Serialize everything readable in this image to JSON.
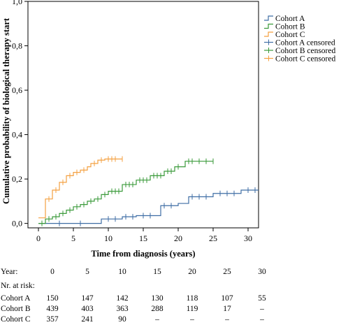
{
  "chart_data": {
    "type": "line",
    "title": "",
    "xlabel": "Time from diagnosis (years)",
    "ylabel": "Cumulative probability of biological therapy start",
    "xlim": [
      -1.5,
      31.5
    ],
    "ylim": [
      -0.02,
      1.0
    ],
    "x_ticks": [
      0,
      5,
      10,
      15,
      20,
      25,
      30
    ],
    "x_tick_labels": [
      "0",
      "5",
      "10",
      "15",
      "20",
      "25",
      "30"
    ],
    "y_ticks": [
      0.0,
      0.2,
      0.4,
      0.6,
      0.8,
      1.0
    ],
    "y_tick_labels": [
      "0,0",
      "0,2",
      "0,4",
      "0,6",
      "0,8",
      "1,0"
    ],
    "grid": false,
    "legend_position": "top-right",
    "legend": [
      "Cohort A",
      "Cohort B",
      "Cohort C",
      "Cohort A censored",
      "Cohort B censored",
      "Cohort C censored"
    ],
    "series": [
      {
        "name": "Cohort A",
        "color": "#3f6ea5",
        "steps": [
          [
            0,
            0.0
          ],
          [
            9,
            0.02
          ],
          [
            12,
            0.03
          ],
          [
            14,
            0.035
          ],
          [
            17.5,
            0.08
          ],
          [
            20,
            0.09
          ],
          [
            21.5,
            0.12
          ],
          [
            25,
            0.135
          ],
          [
            29,
            0.15
          ],
          [
            31.5,
            0.15
          ]
        ],
        "censored": [
          [
            3,
            0.0
          ],
          [
            6,
            0.0
          ],
          [
            10,
            0.02
          ],
          [
            11,
            0.02
          ],
          [
            12.5,
            0.03
          ],
          [
            13.5,
            0.03
          ],
          [
            15,
            0.035
          ],
          [
            16,
            0.035
          ],
          [
            18,
            0.08
          ],
          [
            19,
            0.08
          ],
          [
            22,
            0.12
          ],
          [
            23,
            0.12
          ],
          [
            24,
            0.12
          ],
          [
            26,
            0.135
          ],
          [
            27,
            0.135
          ],
          [
            28,
            0.135
          ],
          [
            30,
            0.15
          ],
          [
            31,
            0.15
          ]
        ]
      },
      {
        "name": "Cohort B",
        "color": "#3a9a3a",
        "steps": [
          [
            0,
            0.0
          ],
          [
            1,
            0.02
          ],
          [
            2,
            0.03
          ],
          [
            3,
            0.045
          ],
          [
            4,
            0.06
          ],
          [
            5,
            0.075
          ],
          [
            6,
            0.085
          ],
          [
            7,
            0.1
          ],
          [
            8,
            0.11
          ],
          [
            9,
            0.13
          ],
          [
            10,
            0.145
          ],
          [
            12,
            0.175
          ],
          [
            14,
            0.195
          ],
          [
            16,
            0.215
          ],
          [
            18,
            0.235
          ],
          [
            19.5,
            0.255
          ],
          [
            21,
            0.28
          ],
          [
            25,
            0.28
          ]
        ],
        "censored": [
          [
            0.5,
            0.0
          ],
          [
            1.5,
            0.02
          ],
          [
            2.5,
            0.03
          ],
          [
            3.5,
            0.045
          ],
          [
            4.5,
            0.06
          ],
          [
            5.5,
            0.075
          ],
          [
            6.5,
            0.085
          ],
          [
            7.5,
            0.1
          ],
          [
            8.5,
            0.11
          ],
          [
            9.5,
            0.13
          ],
          [
            10.5,
            0.145
          ],
          [
            11,
            0.145
          ],
          [
            11.5,
            0.145
          ],
          [
            12.5,
            0.175
          ],
          [
            13,
            0.175
          ],
          [
            13.5,
            0.175
          ],
          [
            14.5,
            0.195
          ],
          [
            15,
            0.195
          ],
          [
            15.5,
            0.195
          ],
          [
            16.5,
            0.215
          ],
          [
            17,
            0.215
          ],
          [
            17.5,
            0.215
          ],
          [
            18.5,
            0.235
          ],
          [
            19,
            0.235
          ],
          [
            20,
            0.255
          ],
          [
            21.5,
            0.28
          ],
          [
            22,
            0.28
          ],
          [
            23,
            0.28
          ],
          [
            24,
            0.28
          ],
          [
            25,
            0.28
          ]
        ]
      },
      {
        "name": "Cohort C",
        "color": "#f4a040",
        "steps": [
          [
            0,
            0.025
          ],
          [
            1,
            0.11
          ],
          [
            2,
            0.15
          ],
          [
            3,
            0.185
          ],
          [
            4,
            0.215
          ],
          [
            5,
            0.23
          ],
          [
            6,
            0.24
          ],
          [
            7,
            0.255
          ],
          [
            7.5,
            0.27
          ],
          [
            8.5,
            0.285
          ],
          [
            9.5,
            0.29
          ],
          [
            12,
            0.29
          ]
        ],
        "censored": [
          [
            1.5,
            0.11
          ],
          [
            2.5,
            0.15
          ],
          [
            3.5,
            0.185
          ],
          [
            4.5,
            0.215
          ],
          [
            5.5,
            0.23
          ],
          [
            6.5,
            0.24
          ],
          [
            8,
            0.27
          ],
          [
            9,
            0.285
          ],
          [
            10,
            0.29
          ],
          [
            10.5,
            0.29
          ],
          [
            11,
            0.29
          ],
          [
            12,
            0.29
          ]
        ]
      }
    ]
  },
  "risk_table": {
    "year_label": "Year:",
    "years": [
      "0",
      "5",
      "10",
      "15",
      "20",
      "25",
      "30"
    ],
    "at_risk_label": "Nr. at risk:",
    "rows": [
      {
        "label": "Cohort A",
        "values": [
          "150",
          "147",
          "142",
          "130",
          "118",
          "107",
          "55"
        ]
      },
      {
        "label": "Cohort B",
        "values": [
          "439",
          "403",
          "363",
          "288",
          "119",
          "17",
          "–"
        ]
      },
      {
        "label": "Cohort C",
        "values": [
          "357",
          "241",
          "90",
          "–",
          "–",
          "–",
          "–"
        ]
      }
    ]
  }
}
